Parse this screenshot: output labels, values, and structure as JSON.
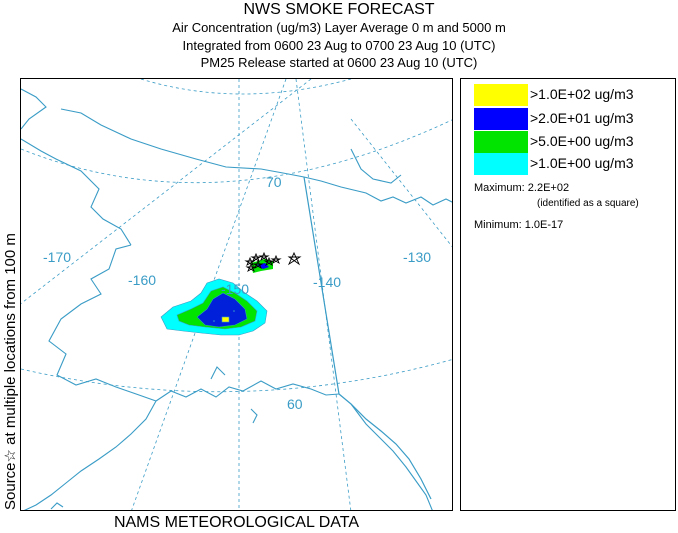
{
  "header": {
    "title": "NWS SMOKE FORECAST",
    "line1": "Air Concentration (ug/m3) Layer Average    0 m and  5000 m",
    "line2": "Integrated from 0600 23 Aug to 0700 23 Aug 10 (UTC)",
    "line3": "PM25 Release started at 0600 23 Aug 10 (UTC)"
  },
  "side_label": "Source☆ at multiple locations   from   100 m",
  "footer": "NAMS METEOROLOGICAL DATA",
  "map": {
    "longitude_labels": [
      "-170",
      "-160",
      "-150",
      "-140",
      "-130"
    ],
    "latitude_labels": [
      "70",
      "60"
    ],
    "colors": {
      "coast": "#3a9cc6",
      "grid": "#3a9cc6",
      "label": "#3a9cc6"
    }
  },
  "legend": {
    "items": [
      {
        "label": ">1.0E+02 ug/m3",
        "color": "#ffff00"
      },
      {
        "label": ">2.0E+01 ug/m3",
        "color": "#0000ff"
      },
      {
        "label": ">5.0E+00 ug/m3",
        "color": "#00e400"
      },
      {
        "label": ">1.0E+00 ug/m3",
        "color": "#00ffff"
      }
    ],
    "maximum_label": "Maximum: 2.2E+02",
    "maximum_note": "(identified as a square)",
    "minimum_label": "Minimum: 1.0E-17"
  }
}
